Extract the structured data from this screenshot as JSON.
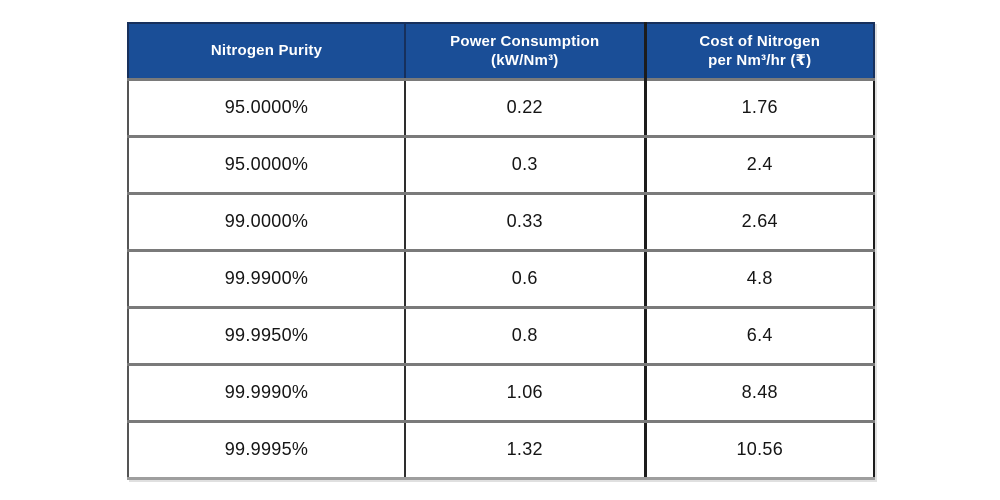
{
  "page": {
    "background": "#FFFFFF"
  },
  "table": {
    "semantic_title": "Nitrogen purity vs power consumption and cost",
    "columns": [
      {
        "line1": "Nitrogen Purity",
        "line2": ""
      },
      {
        "line1": "Power Consumption",
        "line2": "(kW/Nm³)"
      },
      {
        "line1": "Cost of Nitrogen",
        "line2": "per Nm³/hr (₹)"
      }
    ],
    "rows": [
      [
        "95.0000%",
        "0.22",
        "1.76"
      ],
      [
        "95.0000%",
        "0.3",
        "2.4"
      ],
      [
        "99.0000%",
        "0.33",
        "2.64"
      ],
      [
        "99.9900%",
        "0.6",
        "4.8"
      ],
      [
        "99.9950%",
        "0.8",
        "6.4"
      ],
      [
        "99.9990%",
        "1.06",
        "8.48"
      ],
      [
        "99.9995%",
        "1.32",
        "10.56"
      ]
    ],
    "colors": {
      "header_bg": "#1A4E97",
      "header_text": "#FFFFFF",
      "body_text": "#151515",
      "vertical_border": "#2E2E2E",
      "horizontal_border": "#7A7A7A",
      "bottom_edge": "#9E9E9E"
    }
  },
  "chart_data": {
    "type": "table",
    "title": "",
    "columns": [
      "Nitrogen Purity",
      "Power Consumption (kW/Nm³)",
      "Cost of Nitrogen per Nm³/hr (₹)"
    ],
    "rows": [
      [
        "95.0000%",
        0.22,
        1.76
      ],
      [
        "95.0000%",
        0.3,
        2.4
      ],
      [
        "99.0000%",
        0.33,
        2.64
      ],
      [
        "99.9900%",
        0.6,
        4.8
      ],
      [
        "99.9950%",
        0.8,
        6.4
      ],
      [
        "99.9990%",
        1.06,
        8.48
      ],
      [
        "99.9995%",
        1.32,
        10.56
      ]
    ],
    "notes": "Cost column equals power consumption multiplied by 8; grid table with dark blue header row, no chart axes."
  }
}
